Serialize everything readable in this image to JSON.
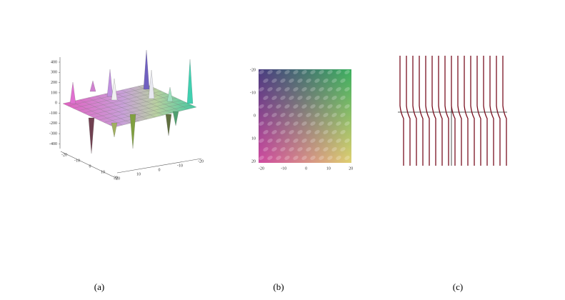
{
  "panel_a": {
    "z_ticks": [
      400,
      300,
      200,
      100,
      0,
      -100,
      -200,
      -300,
      -400
    ],
    "left_axis_ticks": [
      -20,
      -10,
      0,
      10,
      20
    ],
    "right_axis_ticks": [
      20,
      10,
      0,
      -10,
      -20
    ],
    "caption": "(a)"
  },
  "panel_b": {
    "y_ticks": [
      -20,
      -10,
      0,
      10,
      20
    ],
    "x_ticks": [
      -20,
      -10,
      0,
      10,
      20
    ],
    "caption": "(b)"
  },
  "panel_c": {
    "caption": "(c)"
  }
}
